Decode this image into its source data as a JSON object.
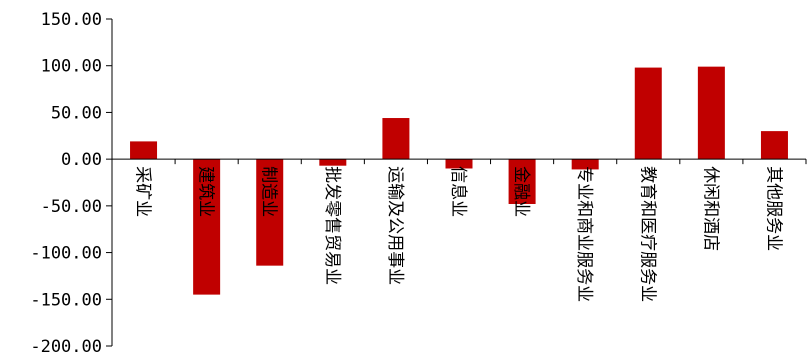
{
  "chart_data": {
    "type": "bar",
    "categories": [
      "采矿业",
      "建筑业",
      "制造业",
      "批发零售贸易业",
      "运输及公用事业",
      "信息业",
      "金融业",
      "专业和商业服务业",
      "教育和医疗服务业",
      "休闲和酒店",
      "其他服务业"
    ],
    "values": [
      19,
      -145,
      -114,
      -7,
      44,
      -10,
      -48,
      -11,
      98,
      99,
      30
    ],
    "title": "",
    "xlabel": "",
    "ylabel": "",
    "ylim": [
      -200,
      150
    ],
    "yticks": [
      150,
      100,
      50,
      0,
      -50,
      -100,
      -150,
      -200
    ],
    "ytick_labels": [
      "150.00",
      "100.00",
      "50.00",
      "0.00",
      "-50.00",
      "-100.00",
      "-150.00",
      "-200.00"
    ],
    "grid": false,
    "legend": "none",
    "colors": {
      "bar": "#c00000",
      "axis": "#000000"
    }
  }
}
